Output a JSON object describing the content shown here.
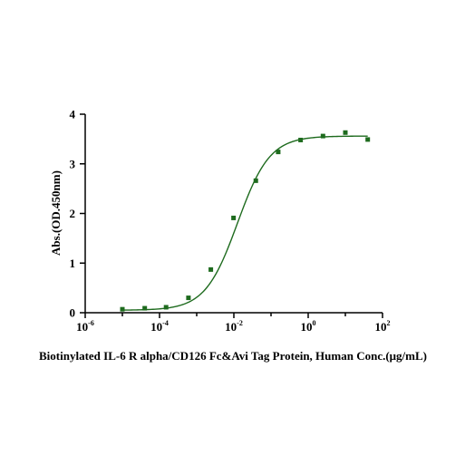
{
  "chart_data": {
    "type": "scatter",
    "title": "",
    "xlabel": "Biotinylated IL-6 R alpha/CD126 Fc&Avi Tag Protein, Human Conc.(μg/mL)",
    "ylabel": "Abs.(OD.450nm)",
    "x_scale": "log",
    "xlim": [
      1e-06,
      100
    ],
    "ylim": [
      0,
      4
    ],
    "x_ticks": [
      {
        "base": "10",
        "exp": "-6"
      },
      {
        "base": "10",
        "exp": "-4"
      },
      {
        "base": "10",
        "exp": "-2"
      },
      {
        "base": "10",
        "exp": "0"
      },
      {
        "base": "10",
        "exp": "2"
      }
    ],
    "y_ticks": [
      "0",
      "1",
      "2",
      "3",
      "4"
    ],
    "grid": false,
    "series": [
      {
        "color": "#1e6b1e",
        "marker": "square",
        "x": [
          1e-05,
          4e-05,
          0.00015,
          0.0006,
          0.0024,
          0.0098,
          0.039,
          0.156,
          0.625,
          2.5,
          10,
          40
        ],
        "y": [
          0.07,
          0.09,
          0.11,
          0.3,
          0.87,
          1.91,
          2.66,
          3.24,
          3.48,
          3.56,
          3.63,
          3.49
        ]
      }
    ],
    "fit_curve": {
      "color": "#1e6b1e",
      "model": "4PL",
      "bottom": 0.05,
      "top": 3.56,
      "ec50": 0.0125,
      "hill": 1.0
    }
  }
}
